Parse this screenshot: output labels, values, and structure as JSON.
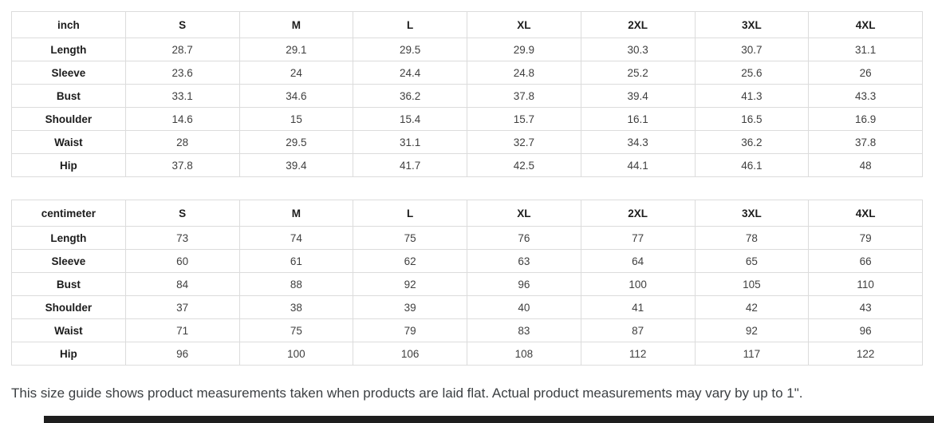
{
  "tables": [
    {
      "unit": "inch",
      "sizes": [
        "S",
        "M",
        "L",
        "XL",
        "2XL",
        "3XL",
        "4XL"
      ],
      "rows": [
        {
          "label": "Length",
          "values": [
            "28.7",
            "29.1",
            "29.5",
            "29.9",
            "30.3",
            "30.7",
            "31.1"
          ]
        },
        {
          "label": "Sleeve",
          "values": [
            "23.6",
            "24",
            "24.4",
            "24.8",
            "25.2",
            "25.6",
            "26"
          ]
        },
        {
          "label": "Bust",
          "values": [
            "33.1",
            "34.6",
            "36.2",
            "37.8",
            "39.4",
            "41.3",
            "43.3"
          ]
        },
        {
          "label": "Shoulder",
          "values": [
            "14.6",
            "15",
            "15.4",
            "15.7",
            "16.1",
            "16.5",
            "16.9"
          ]
        },
        {
          "label": "Waist",
          "values": [
            "28",
            "29.5",
            "31.1",
            "32.7",
            "34.3",
            "36.2",
            "37.8"
          ]
        },
        {
          "label": "Hip",
          "values": [
            "37.8",
            "39.4",
            "41.7",
            "42.5",
            "44.1",
            "46.1",
            "48"
          ]
        }
      ]
    },
    {
      "unit": "centimeter",
      "sizes": [
        "S",
        "M",
        "L",
        "XL",
        "2XL",
        "3XL",
        "4XL"
      ],
      "rows": [
        {
          "label": "Length",
          "values": [
            "73",
            "74",
            "75",
            "76",
            "77",
            "78",
            "79"
          ]
        },
        {
          "label": "Sleeve",
          "values": [
            "60",
            "61",
            "62",
            "63",
            "64",
            "65",
            "66"
          ]
        },
        {
          "label": "Bust",
          "values": [
            "84",
            "88",
            "92",
            "96",
            "100",
            "105",
            "110"
          ]
        },
        {
          "label": "Shoulder",
          "values": [
            "37",
            "38",
            "39",
            "40",
            "41",
            "42",
            "43"
          ]
        },
        {
          "label": "Waist",
          "values": [
            "71",
            "75",
            "79",
            "83",
            "87",
            "92",
            "96"
          ]
        },
        {
          "label": "Hip",
          "values": [
            "96",
            "100",
            "106",
            "108",
            "112",
            "117",
            "122"
          ]
        }
      ]
    }
  ],
  "footer": {
    "note": "This size guide shows product measurements taken when products are laid flat. Actual product measurements may vary by up to 1\"."
  },
  "colors": {
    "border": "#dcdcdc",
    "header_text": "#1c1c1c",
    "value_text": "#3f3f3f",
    "note_text": "#3c4043",
    "scrollbar_thumb": "#1e1e1e"
  }
}
